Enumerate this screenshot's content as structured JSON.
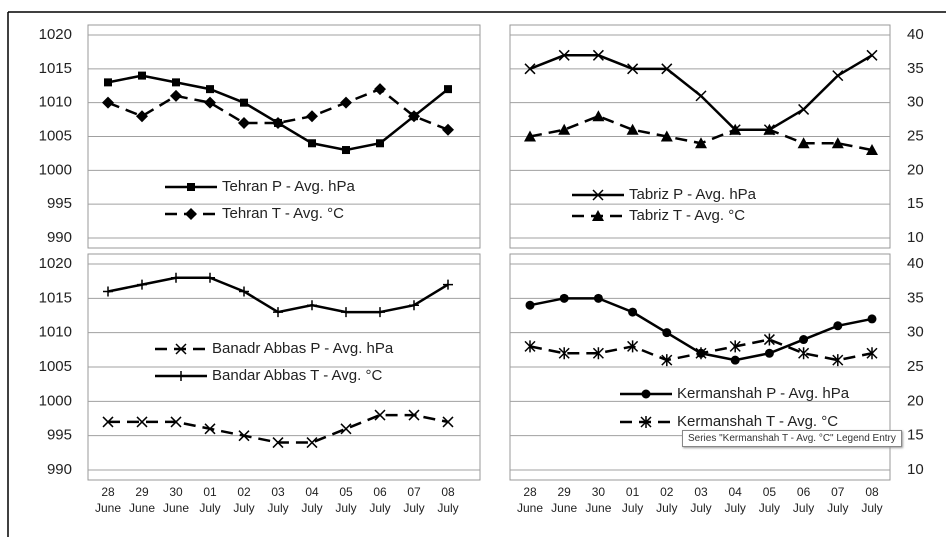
{
  "chart_data": [
    {
      "type": "line",
      "ylim": [
        990,
        1020
      ],
      "yticks": [
        990,
        995,
        1000,
        1005,
        1010,
        1015,
        1020
      ],
      "grid": true,
      "series": [
        {
          "name": "Tehran P - Avg. hPa",
          "color": "#000000",
          "marker": "square",
          "dashed": false,
          "values": [
            1013,
            1014,
            1013,
            1012,
            1010,
            1007,
            1004,
            1003,
            1004,
            1008,
            1012
          ]
        },
        {
          "name": "Tehran T - Avg. °C",
          "color": "#000000",
          "marker": "diamond",
          "dashed": true,
          "values": [
            1010,
            1008,
            1011,
            1010,
            1007,
            1007,
            1008,
            1010,
            1012,
            1008,
            1006
          ]
        }
      ]
    },
    {
      "type": "line",
      "y2lim": [
        10,
        40
      ],
      "y2ticks": [
        10,
        15,
        20,
        25,
        30,
        35,
        40
      ],
      "grid": true,
      "series": [
        {
          "name": "Tabriz P - Avg. hPa",
          "color": "#000000",
          "marker": "x",
          "dashed": false,
          "axis": "y2",
          "values": [
            35,
            37,
            37,
            35,
            35,
            31,
            26,
            26,
            29,
            34,
            37
          ]
        },
        {
          "name": "Tabriz T - Avg. °C",
          "color": "#000000",
          "marker": "triangle",
          "dashed": true,
          "axis": "y2",
          "values": [
            25,
            26,
            28,
            26,
            25,
            24,
            26,
            26,
            24,
            24,
            23
          ]
        }
      ]
    },
    {
      "type": "line",
      "ylim": [
        990,
        1020
      ],
      "yticks": [
        990,
        995,
        1000,
        1005,
        1010,
        1015,
        1020
      ],
      "grid": true,
      "categories": [
        "28 June",
        "29 June",
        "30 June",
        "01 July",
        "02 July",
        "03 July",
        "04 July",
        "05 July",
        "06 July",
        "07 July",
        "08 July"
      ],
      "series": [
        {
          "name": "Banadr Abbas P - Avg. hPa",
          "color": "#000000",
          "marker": "x",
          "dashed": true,
          "values": [
            997,
            997,
            997,
            996,
            995,
            994,
            994,
            996,
            998,
            998,
            997
          ]
        },
        {
          "name": "Bandar Abbas T - Avg. °C",
          "color": "#000000",
          "marker": "plus",
          "dashed": false,
          "values": [
            1016,
            1017,
            1018,
            1018,
            1016,
            1013,
            1014,
            1013,
            1013,
            1014,
            1017
          ]
        }
      ]
    },
    {
      "type": "line",
      "y2lim": [
        10,
        40
      ],
      "y2ticks": [
        10,
        15,
        20,
        25,
        30,
        35,
        40
      ],
      "grid": true,
      "categories": [
        "28 June",
        "29 June",
        "30 June",
        "01 July",
        "02 July",
        "03 July",
        "04 July",
        "05 July",
        "06 July",
        "07 July",
        "08 July"
      ],
      "series": [
        {
          "name": "Kermanshah P - Avg. hPa",
          "color": "#000000",
          "marker": "circle",
          "dashed": false,
          "axis": "y2",
          "values": [
            34,
            35,
            35,
            33,
            30,
            27,
            26,
            27,
            29,
            31,
            32
          ]
        },
        {
          "name": "Kermanshah T - Avg. °C",
          "color": "#000000",
          "marker": "asterisk",
          "dashed": true,
          "axis": "y2",
          "values": [
            28,
            27,
            27,
            28,
            26,
            27,
            28,
            29,
            27,
            26,
            27
          ]
        }
      ]
    }
  ],
  "tooltip": "Series \"Kermanshah T - Avg. °C\" Legend Entry"
}
